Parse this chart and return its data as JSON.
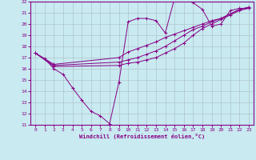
{
  "background_color": "#c8eaf0",
  "grid_color": "#b0c4cc",
  "line_color": "#880088",
  "xlabel": "Windchill (Refroidissement éolien,°C)",
  "xlim": [
    -0.5,
    23.5
  ],
  "ylim": [
    11,
    22
  ],
  "xticks": [
    0,
    1,
    2,
    3,
    4,
    5,
    6,
    7,
    8,
    9,
    10,
    11,
    12,
    13,
    14,
    15,
    16,
    17,
    18,
    19,
    20,
    21,
    22,
    23
  ],
  "yticks": [
    11,
    12,
    13,
    14,
    15,
    16,
    17,
    18,
    19,
    20,
    21,
    22
  ],
  "series": [
    {
      "x": [
        0,
        1,
        2,
        3,
        4,
        5,
        6,
        7,
        8,
        9,
        10,
        11,
        12,
        13,
        14,
        15,
        16,
        17,
        18,
        19,
        20,
        21,
        22,
        23
      ],
      "y": [
        17.4,
        16.9,
        16.0,
        15.5,
        14.3,
        13.2,
        12.2,
        11.8,
        11.1,
        14.8,
        20.2,
        20.5,
        20.5,
        20.3,
        19.2,
        22.3,
        22.4,
        21.9,
        21.3,
        19.8,
        20.0,
        21.2,
        21.4,
        21.4
      ]
    },
    {
      "x": [
        0,
        2,
        9,
        10,
        11,
        12,
        13,
        14,
        15,
        16,
        17,
        18,
        19,
        20,
        21,
        22,
        23
      ],
      "y": [
        17.4,
        16.4,
        17.0,
        17.5,
        17.8,
        18.1,
        18.4,
        18.8,
        19.1,
        19.4,
        19.7,
        20.0,
        20.3,
        20.5,
        20.9,
        21.3,
        21.5
      ]
    },
    {
      "x": [
        0,
        2,
        9,
        10,
        11,
        12,
        13,
        14,
        15,
        16,
        17,
        18,
        19,
        20,
        21,
        22,
        23
      ],
      "y": [
        17.4,
        16.3,
        16.6,
        16.8,
        17.0,
        17.3,
        17.6,
        18.0,
        18.5,
        19.0,
        19.5,
        19.8,
        20.2,
        20.5,
        20.9,
        21.3,
        21.5
      ]
    },
    {
      "x": [
        0,
        2,
        9,
        10,
        11,
        12,
        13,
        14,
        15,
        16,
        17,
        18,
        19,
        20,
        21,
        22,
        23
      ],
      "y": [
        17.4,
        16.2,
        16.3,
        16.5,
        16.6,
        16.8,
        17.0,
        17.4,
        17.8,
        18.3,
        19.0,
        19.6,
        20.0,
        20.4,
        20.8,
        21.2,
        21.4
      ]
    }
  ]
}
